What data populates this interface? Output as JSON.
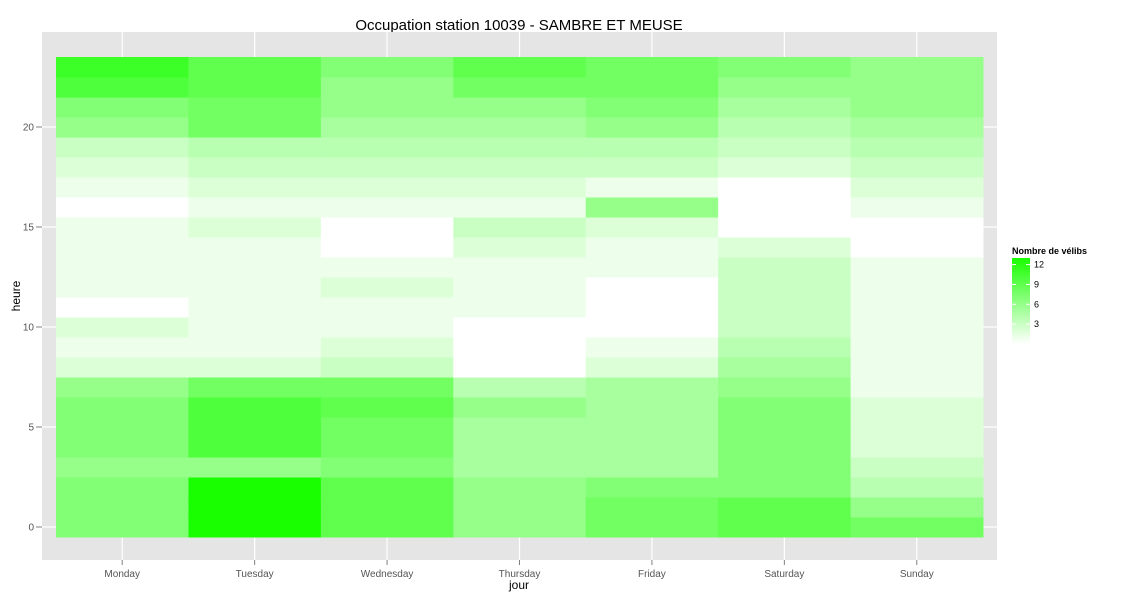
{
  "chart_data": {
    "type": "heatmap",
    "title": "Occupation station 10039 - SAMBRE ET MEUSE",
    "xlabel": "jour",
    "ylabel": "heure",
    "x_categories": [
      "Monday",
      "Tuesday",
      "Wednesday",
      "Thursday",
      "Friday",
      "Saturday",
      "Sunday"
    ],
    "y_values": [
      0,
      1,
      2,
      3,
      4,
      5,
      6,
      7,
      8,
      9,
      10,
      11,
      12,
      13,
      14,
      15,
      16,
      17,
      18,
      19,
      20,
      21,
      22,
      23
    ],
    "y_ticks": [
      0,
      5,
      10,
      15,
      20
    ],
    "ylim": [
      -0.5,
      23.5
    ],
    "grid": true,
    "legend": {
      "title": "Nombre de vélibs",
      "position": "right",
      "ticks": [
        12,
        9,
        6,
        3
      ],
      "range": [
        0,
        13
      ],
      "color_low": "#ffffff",
      "color_high": "#19ff00"
    },
    "values": {
      "Monday": [
        7,
        7,
        7,
        6,
        7,
        7,
        7,
        6,
        2,
        1,
        2,
        0,
        1,
        1,
        1,
        1,
        0,
        1,
        2,
        3,
        6,
        7,
        10,
        11
      ],
      "Tuesday": [
        13,
        13,
        13,
        6,
        10,
        10,
        10,
        8,
        2,
        1,
        1,
        1,
        1,
        1,
        1,
        2,
        1,
        2,
        3,
        4,
        8,
        8,
        9,
        9
      ],
      "Wednesday": [
        9,
        9,
        9,
        7,
        8,
        8,
        9,
        8,
        3,
        2,
        1,
        1,
        2,
        1,
        0,
        0,
        1,
        2,
        3,
        4,
        5,
        6,
        6,
        7
      ],
      "Thursday": [
        6,
        6,
        6,
        5,
        5,
        5,
        6,
        4,
        0,
        0,
        0,
        1,
        1,
        1,
        2,
        3,
        1,
        2,
        3,
        4,
        5,
        6,
        8,
        9
      ],
      "Friday": [
        8,
        8,
        7,
        5,
        5,
        5,
        5,
        5,
        2,
        1,
        0,
        0,
        0,
        1,
        1,
        2,
        6,
        1,
        3,
        4,
        6,
        7,
        8,
        8
      ],
      "Saturday": [
        9,
        9,
        7,
        7,
        7,
        7,
        7,
        6,
        5,
        4,
        3,
        3,
        3,
        3,
        2,
        0,
        0,
        0,
        2,
        3,
        4,
        5,
        6,
        7
      ],
      "Sunday": [
        8,
        6,
        4,
        3,
        2,
        2,
        2,
        1,
        1,
        1,
        1,
        1,
        1,
        1,
        0,
        0,
        1,
        2,
        3,
        4,
        5,
        6,
        6,
        6
      ]
    }
  }
}
